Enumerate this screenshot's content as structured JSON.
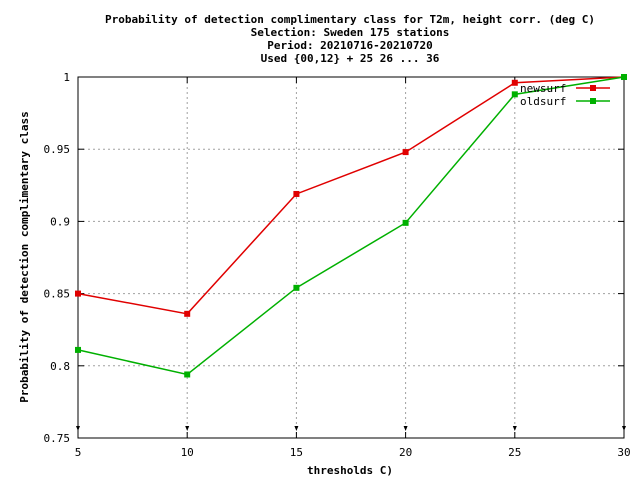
{
  "chart_data": {
    "type": "line",
    "title_lines": [
      "Probability of detection complimentary class  for T2m, height corr. (deg C)",
      "Selection: Sweden    175 stations",
      "Period: 20210716-20210720",
      "Used {00,12} + 25 26 ... 36"
    ],
    "xlabel": "thresholds C)",
    "ylabel": "Probability of detection complimentary class",
    "x": [
      5,
      10,
      15,
      20,
      25,
      30
    ],
    "xlim": [
      5,
      30
    ],
    "ylim": [
      0.75,
      1.0
    ],
    "x_ticks": [
      "5",
      "10",
      "15",
      "20",
      "25",
      "30"
    ],
    "y_ticks": [
      "0.75",
      "0.8",
      "0.85",
      "0.9",
      "0.95",
      "1"
    ],
    "grid": true,
    "legend_position": "top-right",
    "series": [
      {
        "name": "newsurf",
        "color": "#e00000",
        "values": [
          0.85,
          0.836,
          0.919,
          0.948,
          0.996,
          1.0
        ]
      },
      {
        "name": "oldsurf",
        "color": "#00b000",
        "values": [
          0.811,
          0.794,
          0.854,
          0.899,
          0.988,
          1.0
        ]
      }
    ]
  }
}
